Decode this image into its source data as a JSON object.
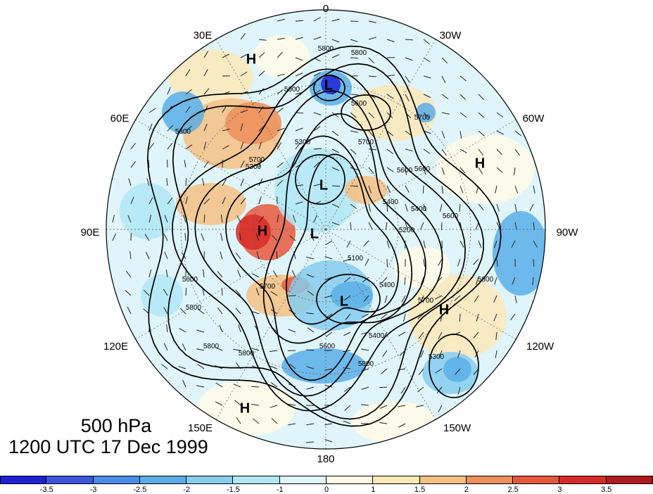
{
  "titles": {
    "level": "500 hPa",
    "time": "1200 UTC 17 Dec 1999"
  },
  "longitude_labels": [
    "0",
    "30W",
    "60W",
    "90W",
    "120W",
    "150W",
    "180",
    "150E",
    "120E",
    "90E",
    "60E",
    "30E"
  ],
  "pressure_centers": [
    {
      "type": "H",
      "lon_label": "30E"
    },
    {
      "type": "L",
      "lon_label": "0"
    },
    {
      "type": "H",
      "lon_label": "60W"
    },
    {
      "type": "L",
      "lon_label": "pole"
    },
    {
      "type": "H",
      "lon_label": "90E"
    },
    {
      "type": "L",
      "lon_label": "pole"
    },
    {
      "type": "L",
      "lon_label": "180"
    },
    {
      "type": "H",
      "lon_label": "120W"
    },
    {
      "type": "H",
      "lon_label": "150E"
    }
  ],
  "contour_labels": [
    "5800",
    "5800",
    "5600",
    "5700",
    "5600",
    "5700",
    "5600",
    "5400",
    "5200",
    "5400",
    "5600",
    "5800",
    "5100",
    "5400",
    "5300",
    "5600",
    "5700",
    "5800",
    "5800",
    "5700",
    "5400",
    "5600",
    "5800",
    "5300",
    "5300",
    "5800",
    "5600",
    "5700",
    "5800"
  ],
  "colorbar": {
    "ticks": [
      "-3.5",
      "-3",
      "-2.5",
      "-2",
      "-1.5",
      "-1",
      "0",
      "1",
      "1.5",
      "2",
      "2.5",
      "3",
      "3.5"
    ],
    "colors": [
      "#2020d8",
      "#3a55e0",
      "#4a8ce8",
      "#5aaee8",
      "#86cdee",
      "#b2e6f4",
      "#dff5fa",
      "#fffbe6",
      "#fde8b8",
      "#f6c083",
      "#ee8f5c",
      "#e8583c",
      "#d82a28",
      "#b01a1a"
    ]
  },
  "chart_data": {
    "type": "heatmap",
    "projection": "north polar stereographic",
    "field": "500 hPa geopotential height anomaly with height contours and wind barbs",
    "contour_interval": 100,
    "contour_levels": [
      5100,
      5200,
      5300,
      5400,
      5500,
      5600,
      5700,
      5800
    ],
    "color_levels": [
      -3.5,
      -3,
      -2.5,
      -2,
      -1.5,
      -1,
      0,
      1,
      1.5,
      2,
      2.5,
      3,
      3.5
    ]
  }
}
